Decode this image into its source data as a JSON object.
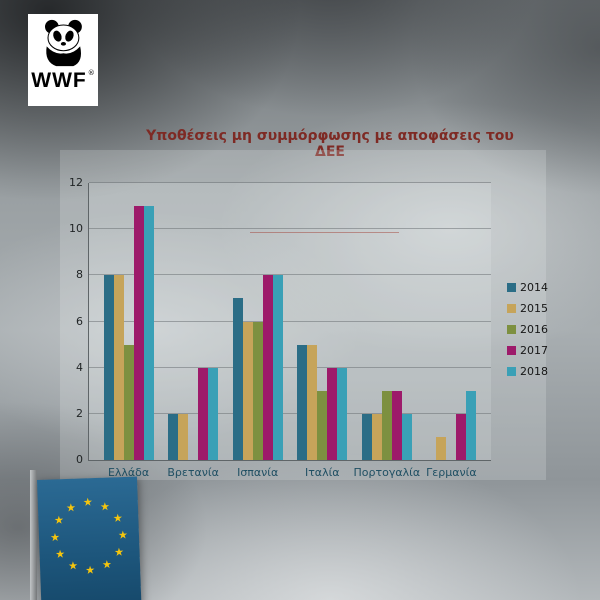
{
  "logo": {
    "brand": "WWF",
    "registered": "®"
  },
  "title": "Υποθέσεις μη συμμόρφωσης με αποφάσεις του ΔΕΕ",
  "icons": {
    "star": "★",
    "panda": "panda-icon"
  },
  "chart_data": {
    "type": "bar",
    "title": "Υποθέσεις μη συμμόρφωσης με αποφάσεις του ΔΕΕ",
    "categories": [
      "Ελλάδα",
      "Βρετανία",
      "Ισπανία",
      "Ιταλία",
      "Πορτογαλία",
      "Γερμανία"
    ],
    "series": [
      {
        "name": "2014",
        "color": "#2b6d86",
        "values": [
          8,
          2,
          7,
          5,
          2,
          0
        ]
      },
      {
        "name": "2015",
        "color": "#c6a45a",
        "values": [
          8,
          2,
          6,
          5,
          2,
          1
        ]
      },
      {
        "name": "2016",
        "color": "#7d9040",
        "values": [
          5,
          0,
          6,
          3,
          3,
          0
        ]
      },
      {
        "name": "2017",
        "color": "#9d1a6a",
        "values": [
          11,
          4,
          8,
          4,
          3,
          2
        ]
      },
      {
        "name": "2018",
        "color": "#3aa0b6",
        "values": [
          11,
          4,
          8,
          4,
          2,
          3
        ]
      }
    ],
    "xlabel": "",
    "ylabel": "",
    "ylim": [
      0,
      12
    ],
    "yticks": [
      0,
      2,
      4,
      6,
      8,
      10,
      12
    ],
    "grid": true,
    "legend_position": "right"
  }
}
